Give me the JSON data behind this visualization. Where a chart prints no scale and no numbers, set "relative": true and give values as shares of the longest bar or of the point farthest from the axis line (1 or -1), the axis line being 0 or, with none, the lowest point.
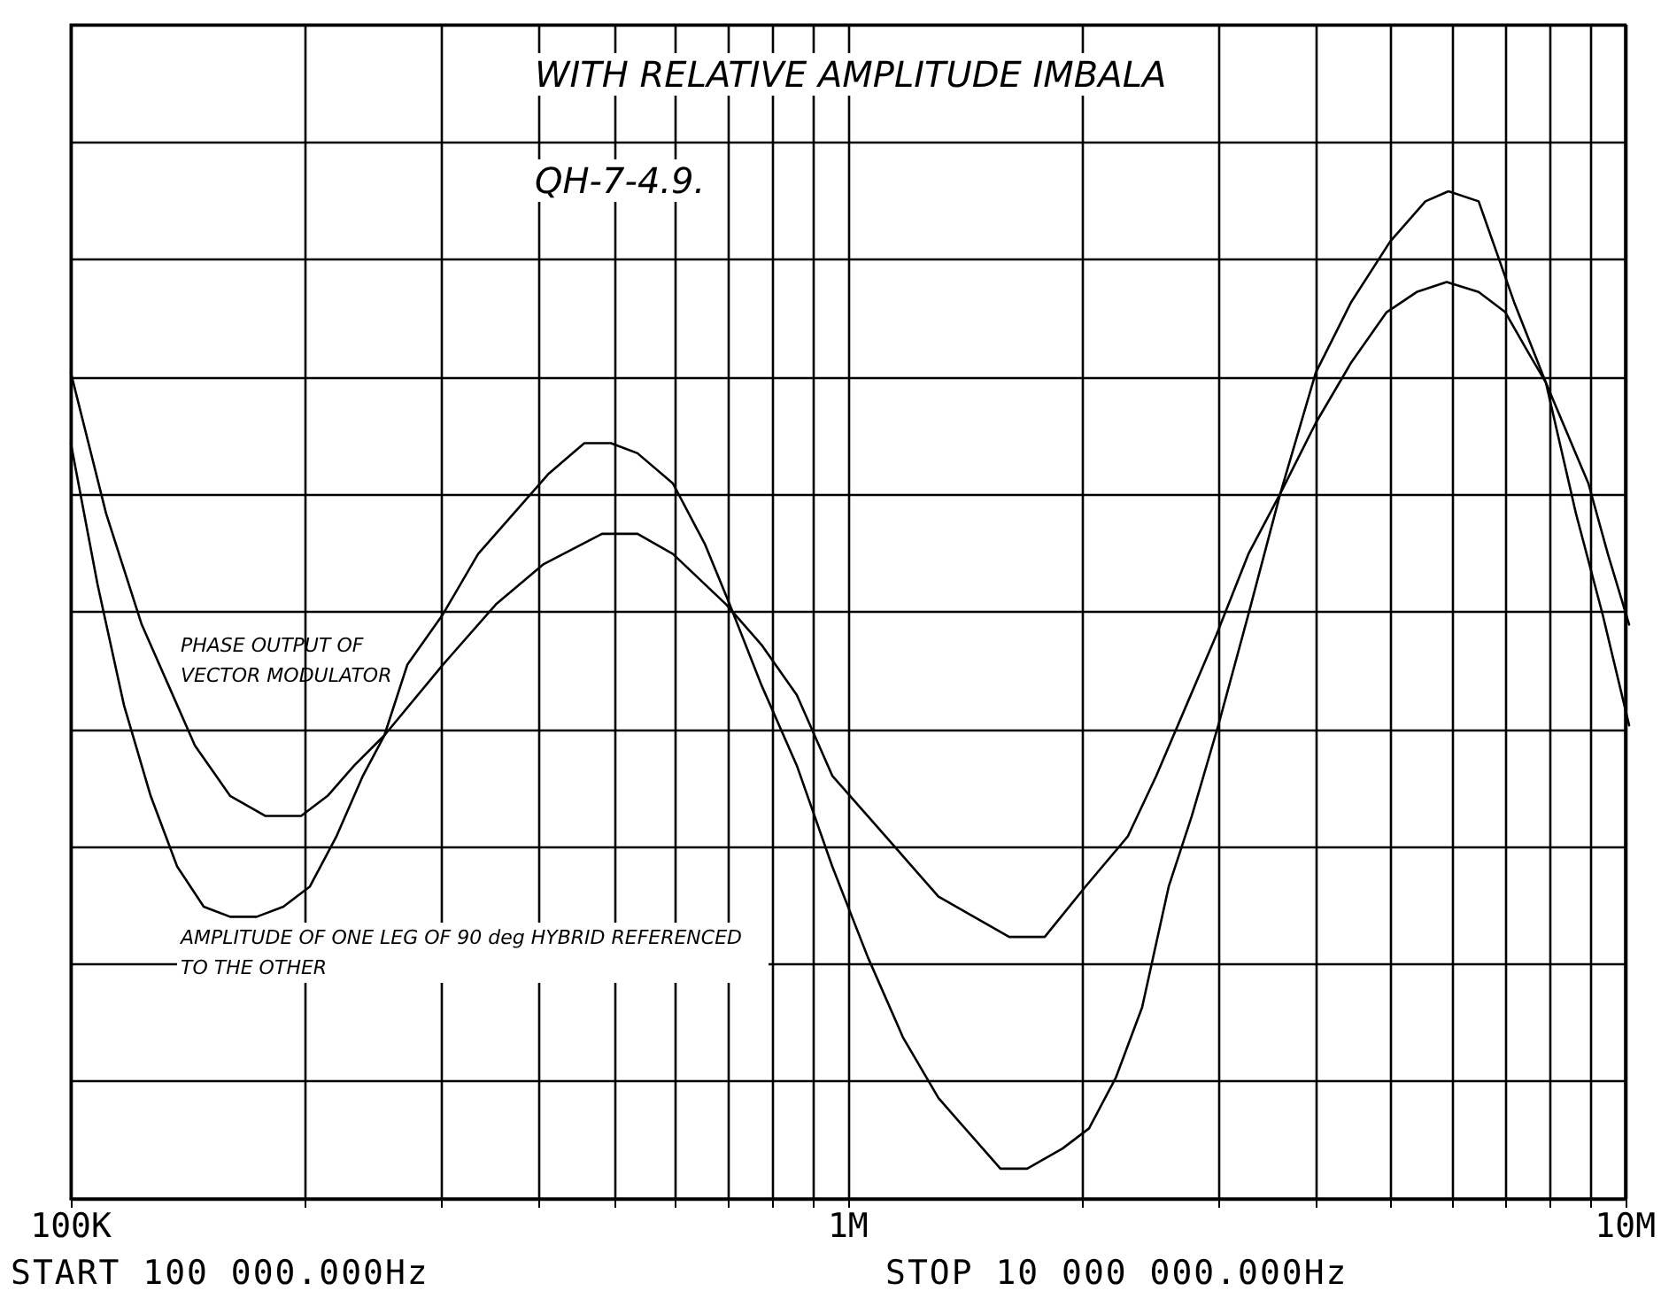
{
  "chart_data": {
    "type": "line",
    "relative": true,
    "log": "x",
    "xlim": [
      100000,
      10000000
    ],
    "xticks": [
      {
        "value": 100000,
        "label": "100K"
      },
      {
        "value": 200000,
        "label": null
      },
      {
        "value": 300000,
        "label": null
      },
      {
        "value": 400000,
        "label": null
      },
      {
        "value": 500000,
        "label": null
      },
      {
        "value": 600000,
        "label": null
      },
      {
        "value": 700000,
        "label": null
      },
      {
        "value": 800000,
        "label": null
      },
      {
        "value": 900000,
        "label": null
      },
      {
        "value": 1000000,
        "label": "1M"
      },
      {
        "value": 2000000,
        "label": null
      },
      {
        "value": 3000000,
        "label": null
      },
      {
        "value": 4000000,
        "label": null
      },
      {
        "value": 5000000,
        "label": null
      },
      {
        "value": 6000000,
        "label": null
      },
      {
        "value": 7000000,
        "label": null
      },
      {
        "value": 8000000,
        "label": null
      },
      {
        "value": 9000000,
        "label": null
      },
      {
        "value": 10000000,
        "label": "10M"
      }
    ],
    "grid": true,
    "marker": "none",
    "line_style": "solid",
    "annotations": [
      "WITH RELATIVE AMPLITUDE IMBALA",
      "QH-7-4.9.",
      "START 100 000.000Hz",
      "STOP 10 000 000.000Hz"
    ],
    "series": [
      {
        "name": "PHASE OUTPUT OF VECTOR MODULATOR",
        "color": "#000000",
        "x": [
          100000,
          111000,
          123300,
          133400,
          144300,
          160100,
          177800,
          197500,
          213600,
          231000,
          252600,
          300200,
          351200,
          404500,
          480600,
          533700,
          592600,
          693500,
          769700,
          854700,
          949000,
          1054000,
          1170000,
          1299000,
          1442000,
          1601000,
          1778000,
          2006000,
          2274000,
          2473000,
          2703000,
          2954000,
          3246000,
          3567000,
          3961000,
          4398000,
          4884000,
          5337000,
          5832000,
          6410000,
          6935000,
          7423000,
          7820000,
          8325000,
          8866000,
          9391000,
          10000000
        ],
        "values": [
          0.82,
          0.68,
          0.57,
          0.51,
          0.45,
          0.4,
          0.38,
          0.38,
          0.4,
          0.43,
          0.46,
          0.53,
          0.59,
          0.63,
          0.66,
          0.66,
          0.64,
          0.59,
          0.55,
          0.5,
          0.42,
          0.38,
          0.34,
          0.3,
          0.28,
          0.26,
          0.26,
          0.31,
          0.36,
          0.42,
          0.49,
          0.56,
          0.64,
          0.7,
          0.77,
          0.83,
          0.88,
          0.9,
          0.91,
          0.9,
          0.88,
          0.84,
          0.81,
          0.76,
          0.71,
          0.64,
          0.57
        ]
      },
      {
        "name": "AMPLITUDE OF ONE LEG OF 90 deg HYBRID REFERENCED TO THE OTHER",
        "color": "#000000",
        "x": [
          100000,
          108200,
          117000,
          126600,
          136900,
          148100,
          160100,
          173200,
          187400,
          202700,
          219300,
          237100,
          252600,
          270300,
          300200,
          333200,
          370000,
          410800,
          456100,
          493400,
          533700,
          592600,
          651200,
          700800,
          769700,
          854700,
          949000,
          1054000,
          1170000,
          1299000,
          1442000,
          1560000,
          1688000,
          1874000,
          2027000,
          2193000,
          2371000,
          2565000,
          2746000,
          2970000,
          3246000,
          3567000,
          3961000,
          4398000,
          4934000,
          5477000,
          5863000,
          6410000,
          7118000,
          7820000,
          8547000,
          9247000,
          10000000
        ],
        "values": [
          0.75,
          0.61,
          0.49,
          0.4,
          0.33,
          0.29,
          0.28,
          0.28,
          0.29,
          0.31,
          0.36,
          0.42,
          0.46,
          0.53,
          0.58,
          0.64,
          0.68,
          0.72,
          0.75,
          0.75,
          0.74,
          0.71,
          0.65,
          0.59,
          0.51,
          0.43,
          0.33,
          0.24,
          0.16,
          0.1,
          0.06,
          0.03,
          0.03,
          0.05,
          0.07,
          0.12,
          0.19,
          0.31,
          0.38,
          0.47,
          0.58,
          0.7,
          0.82,
          0.89,
          0.95,
          0.99,
          1.0,
          0.99,
          0.89,
          0.81,
          0.68,
          0.58,
          0.47
        ]
      }
    ]
  }
}
